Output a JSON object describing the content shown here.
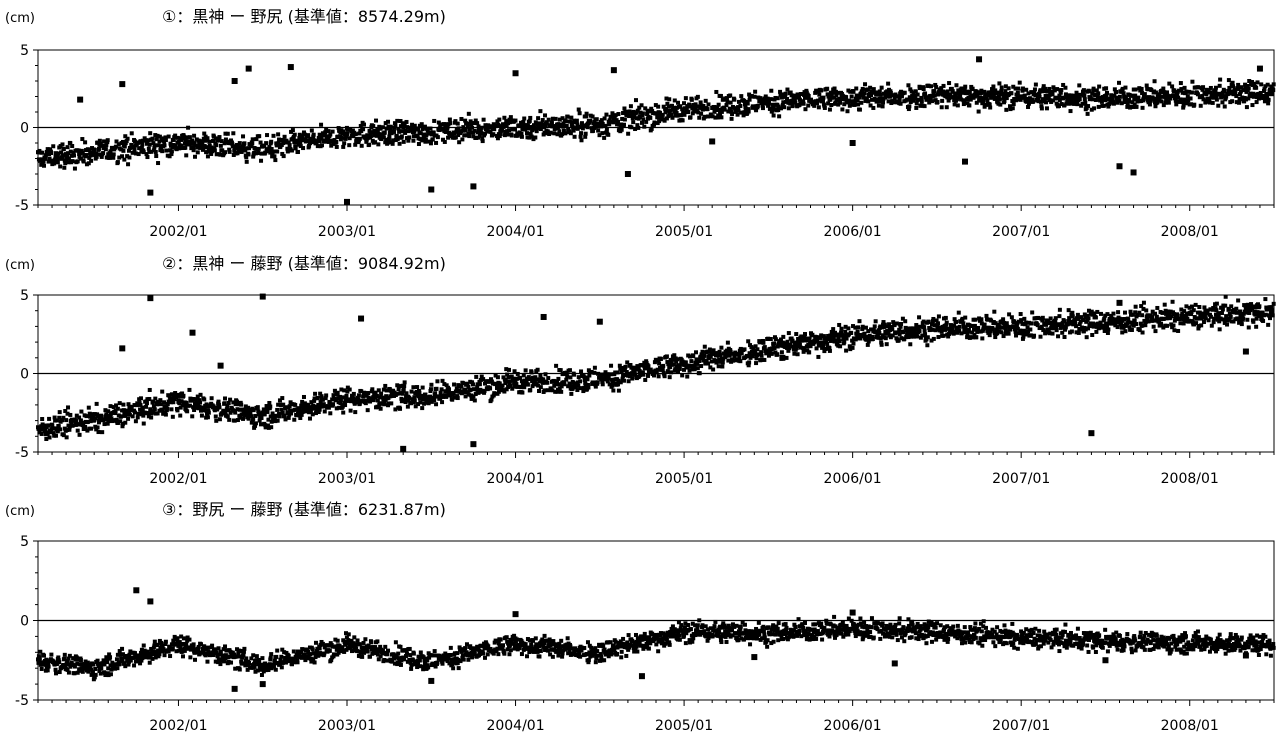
{
  "chart_data": [
    {
      "type": "scatter",
      "title": "①：黒神 ー 野尻 (基準値：8574.29m)",
      "unit_label": "(cm)",
      "ylim": [
        -5,
        5
      ],
      "yticks": [
        "5",
        "0",
        "-5"
      ],
      "xlim": [
        "2001/03",
        "2008/07"
      ],
      "xticks": [
        "2002/01",
        "2003/01",
        "2004/01",
        "2005/01",
        "2006/01",
        "2007/01",
        "2008/01"
      ],
      "series": [
        {
          "trend": [
            [
              "2001/03",
              -2.0
            ],
            [
              "2002/01",
              -1.0
            ],
            [
              "2002/07",
              -1.4
            ],
            [
              "2003/01",
              -0.5
            ],
            [
              "2004/01",
              0.0
            ],
            [
              "2004/07",
              0.2
            ],
            [
              "2005/01",
              1.2
            ],
            [
              "2005/07",
              1.6
            ],
            [
              "2006/01",
              1.9
            ],
            [
              "2006/07",
              2.1
            ],
            [
              "2007/01",
              2.0
            ],
            [
              "2007/07",
              1.9
            ],
            [
              "2008/01",
              2.1
            ],
            [
              "2008/07",
              2.3
            ]
          ],
          "outliers": [
            [
              "2001/06",
              1.8
            ],
            [
              "2001/09",
              2.8
            ],
            [
              "2001/11",
              -4.2
            ],
            [
              "2002/05",
              3.0
            ],
            [
              "2002/06",
              3.8
            ],
            [
              "2002/09",
              3.9
            ],
            [
              "2003/01",
              -4.8
            ],
            [
              "2003/07",
              -4.0
            ],
            [
              "2003/10",
              -3.8
            ],
            [
              "2004/01",
              3.5
            ],
            [
              "2004/08",
              3.7
            ],
            [
              "2004/09",
              -3.0
            ],
            [
              "2005/03",
              -0.9
            ],
            [
              "2006/01",
              -1.0
            ],
            [
              "2006/09",
              -2.2
            ],
            [
              "2006/10",
              4.4
            ],
            [
              "2007/08",
              -2.5
            ],
            [
              "2007/09",
              -2.9
            ],
            [
              "2008/06",
              3.8
            ]
          ]
        }
      ],
      "grid": false,
      "reference_line": 0
    },
    {
      "type": "scatter",
      "title": "②：黒神 ー 藤野 (基準値：9084.92m)",
      "unit_label": "(cm)",
      "ylim": [
        -5,
        5
      ],
      "yticks": [
        "5",
        "0",
        "-5"
      ],
      "xlim": [
        "2001/03",
        "2008/07"
      ],
      "xticks": [
        "2002/01",
        "2003/01",
        "2004/01",
        "2005/01",
        "2006/01",
        "2007/01",
        "2008/01"
      ],
      "series": [
        {
          "trend": [
            [
              "2001/03",
              -3.5
            ],
            [
              "2001/07",
              -3.0
            ],
            [
              "2002/01",
              -1.8
            ],
            [
              "2002/07",
              -2.7
            ],
            [
              "2003/01",
              -1.6
            ],
            [
              "2003/07",
              -1.4
            ],
            [
              "2004/01",
              -0.5
            ],
            [
              "2004/07",
              -0.4
            ],
            [
              "2005/01",
              0.6
            ],
            [
              "2005/07",
              1.6
            ],
            [
              "2006/01",
              2.4
            ],
            [
              "2006/07",
              2.9
            ],
            [
              "2007/01",
              3.0
            ],
            [
              "2007/07",
              3.3
            ],
            [
              "2008/01",
              3.6
            ],
            [
              "2008/07",
              3.9
            ]
          ],
          "outliers": [
            [
              "2001/11",
              4.8
            ],
            [
              "2002/02",
              2.6
            ],
            [
              "2002/07",
              4.9
            ],
            [
              "2002/04",
              0.5
            ],
            [
              "2001/09",
              1.6
            ],
            [
              "2003/02",
              3.5
            ],
            [
              "2003/05",
              -4.8
            ],
            [
              "2003/10",
              -4.5
            ],
            [
              "2004/03",
              3.6
            ],
            [
              "2004/05",
              -0.9
            ],
            [
              "2004/07",
              3.3
            ],
            [
              "2005/08",
              1.0
            ],
            [
              "2007/06",
              -3.8
            ],
            [
              "2007/08",
              4.5
            ],
            [
              "2008/05",
              1.4
            ]
          ]
        }
      ],
      "grid": false,
      "reference_line": 0
    },
    {
      "type": "scatter",
      "title": "③：野尻 ー 藤野 (基準値：6231.87m)",
      "unit_label": "(cm)",
      "ylim": [
        -5,
        5
      ],
      "yticks": [
        "5",
        "0",
        "-5"
      ],
      "xlim": [
        "2001/03",
        "2008/07"
      ],
      "xticks": [
        "2002/01",
        "2003/01",
        "2004/01",
        "2005/01",
        "2006/01",
        "2007/01",
        "2008/01"
      ],
      "series": [
        {
          "trend": [
            [
              "2001/03",
              -2.5
            ],
            [
              "2001/07",
              -3.0
            ],
            [
              "2002/01",
              -1.5
            ],
            [
              "2002/07",
              -2.8
            ],
            [
              "2003/01",
              -1.5
            ],
            [
              "2003/07",
              -2.6
            ],
            [
              "2004/01",
              -1.5
            ],
            [
              "2004/07",
              -2.0
            ],
            [
              "2005/01",
              -0.7
            ],
            [
              "2005/07",
              -0.8
            ],
            [
              "2006/01",
              -0.5
            ],
            [
              "2006/07",
              -0.7
            ],
            [
              "2007/01",
              -1.1
            ],
            [
              "2007/07",
              -1.3
            ],
            [
              "2008/01",
              -1.4
            ],
            [
              "2008/07",
              -1.5
            ]
          ],
          "outliers": [
            [
              "2001/10",
              1.9
            ],
            [
              "2001/11",
              1.2
            ],
            [
              "2002/05",
              -4.3
            ],
            [
              "2002/07",
              -4.0
            ],
            [
              "2003/07",
              -3.8
            ],
            [
              "2004/01",
              0.4
            ],
            [
              "2004/10",
              -3.5
            ],
            [
              "2005/06",
              -2.3
            ],
            [
              "2006/01",
              0.5
            ],
            [
              "2006/04",
              -2.7
            ],
            [
              "2007/07",
              -2.5
            ],
            [
              "2008/05",
              -2.2
            ]
          ]
        }
      ],
      "grid": false,
      "reference_line": 0
    }
  ]
}
